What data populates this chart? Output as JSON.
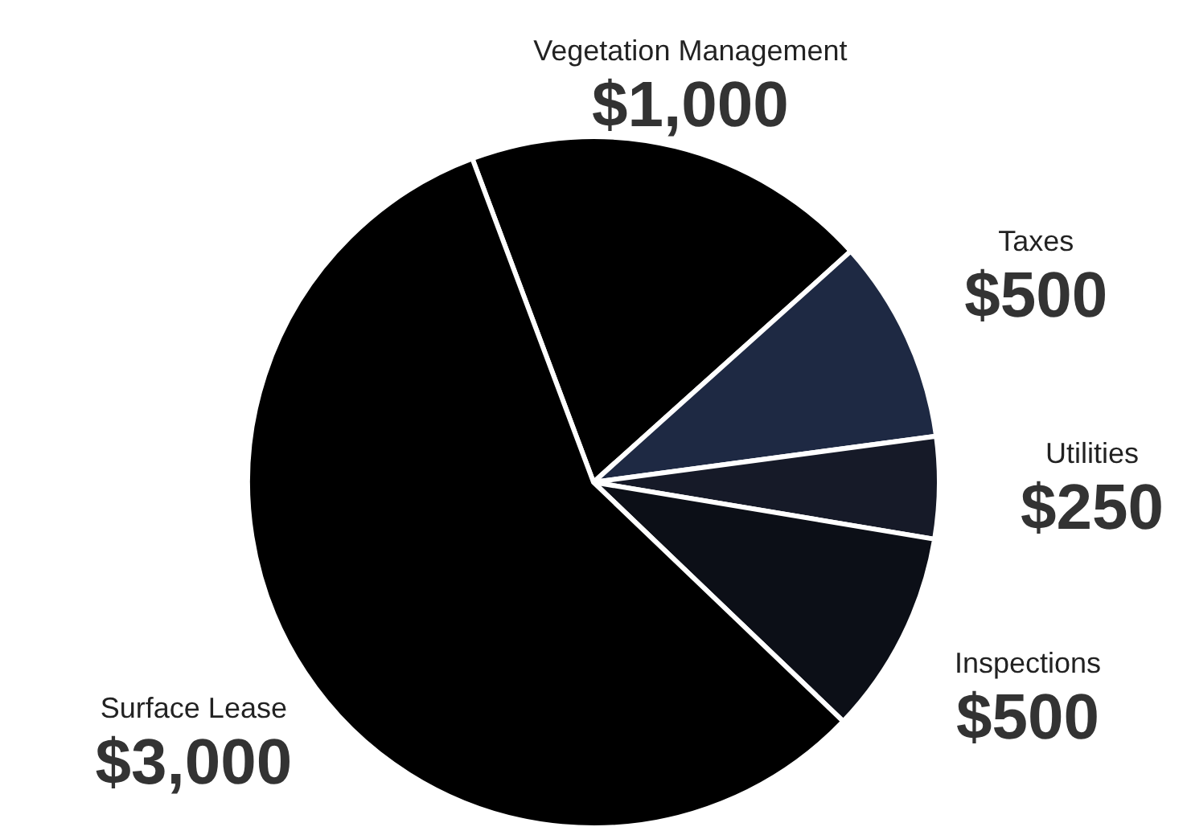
{
  "chart_data": {
    "type": "pie",
    "categories": [
      "Vegetation Management",
      "Taxes",
      "Utilities",
      "Inspections",
      "Surface Lease"
    ],
    "values": [
      1000,
      500,
      250,
      500,
      3000
    ],
    "value_labels": [
      "$1,000",
      "$500",
      "$250",
      "$500",
      "$3,000"
    ],
    "colors": [
      "#000000",
      "#1e2943",
      "#161a28",
      "#0c0f17",
      "#000000"
    ],
    "legend": false
  }
}
